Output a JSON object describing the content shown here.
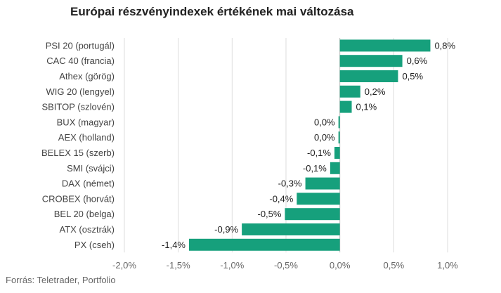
{
  "chart_data": {
    "type": "bar",
    "orientation": "horizontal",
    "title": "Európai részvényindexek értékének mai változása",
    "source": "Forrás: Teletrader, Portfolio",
    "xlim": [
      -2.0,
      1.0
    ],
    "ticks": [
      -2.0,
      -1.5,
      -1.0,
      -0.5,
      0.0,
      0.5,
      1.0
    ],
    "tick_labels": [
      "-2,0%",
      "-1,5%",
      "-1,0%",
      "-0,5%",
      "0,0%",
      "0,5%",
      "1,0%"
    ],
    "grid": true,
    "bar_color": "#16a07c",
    "categories": [
      "PSI 20 (portugál)",
      "CAC 40 (francia)",
      "Athex (görög)",
      "WIG 20 (lengyel)",
      "SBITOP (szlovén)",
      "BUX (magyar)",
      "AEX (holland)",
      "BELEX 15 (szerb)",
      "SMI (svájci)",
      "DAX (német)",
      "CROBEX (horvát)",
      "BEL 20 (belga)",
      "ATX (osztrák)",
      "PX (cseh)"
    ],
    "values": [
      0.84,
      0.58,
      0.54,
      0.19,
      0.11,
      -0.01,
      -0.01,
      -0.05,
      -0.09,
      -0.32,
      -0.4,
      -0.51,
      -0.91,
      -1.4
    ],
    "value_labels": [
      "0,8%",
      "0,6%",
      "0,5%",
      "0,2%",
      "0,1%",
      "0,0%",
      "0,0%",
      "-0,1%",
      "-0,1%",
      "-0,3%",
      "-0,4%",
      "-0,5%",
      "-0,9%",
      "-1,4%"
    ]
  }
}
